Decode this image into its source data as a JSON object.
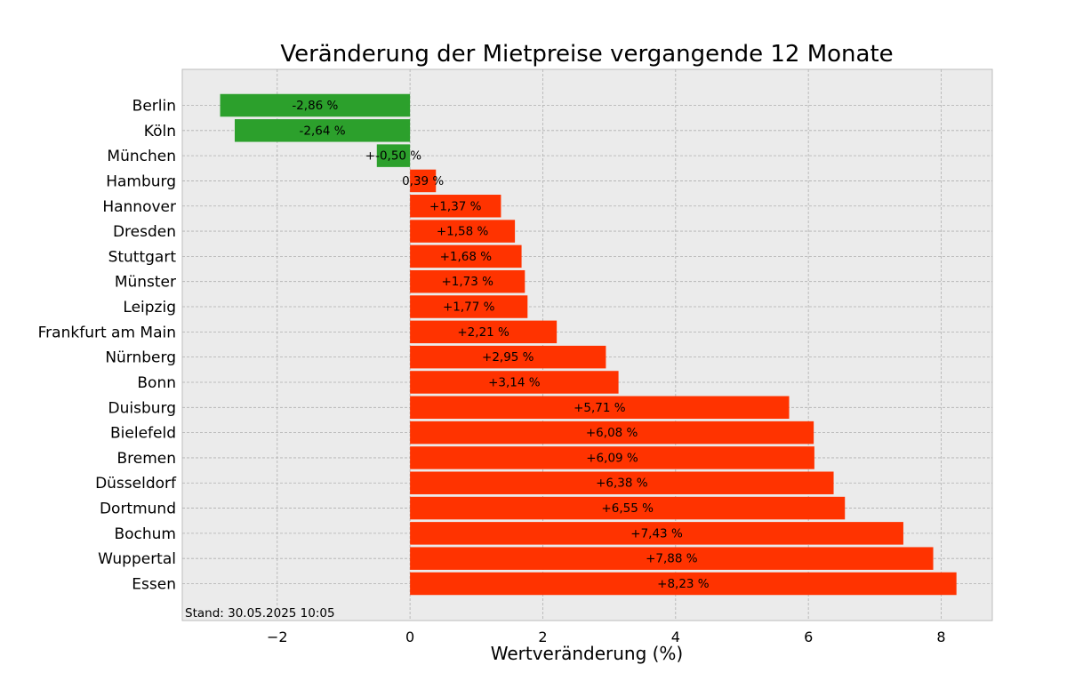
{
  "chart_data": {
    "type": "bar",
    "orientation": "horizontal",
    "title": "Veränderung der Mietpreise vergangende 12 Monate",
    "xlabel": "Wertveränderung (%)",
    "ylabel": "",
    "xlim": [
      -3.43,
      8.77
    ],
    "xticks": [
      -2,
      0,
      2,
      4,
      6,
      8
    ],
    "xtick_labels": [
      "−2",
      "0",
      "2",
      "4",
      "6",
      "8"
    ],
    "grid": true,
    "background": "#ebebeb",
    "categories": [
      "Berlin",
      "Köln",
      "München",
      "Hamburg",
      "Hannover",
      "Dresden",
      "Stuttgart",
      "Münster",
      "Leipzig",
      "Frankfurt am Main",
      "Nürnberg",
      "Bonn",
      "Duisburg",
      "Bielefeld",
      "Bremen",
      "Düsseldorf",
      "Dortmund",
      "Bochum",
      "Wuppertal",
      "Essen"
    ],
    "values": [
      -2.86,
      -2.64,
      -0.5,
      0.39,
      1.37,
      1.58,
      1.68,
      1.73,
      1.77,
      2.21,
      2.95,
      3.14,
      5.71,
      6.08,
      6.09,
      6.38,
      6.55,
      7.43,
      7.88,
      8.23
    ],
    "value_labels": [
      "-2,86 %",
      "-2,64 %",
      "+-0,50 %",
      "0,39 %",
      "+1,37 %",
      "+1,58 %",
      "+1,68 %",
      "+1,73 %",
      "+1,77 %",
      "+2,21 %",
      "+2,95 %",
      "+3,14 %",
      "+5,71 %",
      "+6,08 %",
      "+6,09 %",
      "+6,38 %",
      "+6,55 %",
      "+7,43 %",
      "+7,88 %",
      "+8,23 %"
    ],
    "colors": {
      "negative": "#2ca02c",
      "positive": "#ff3300"
    },
    "annotation": "Stand: 30.05.2025 10:05"
  }
}
